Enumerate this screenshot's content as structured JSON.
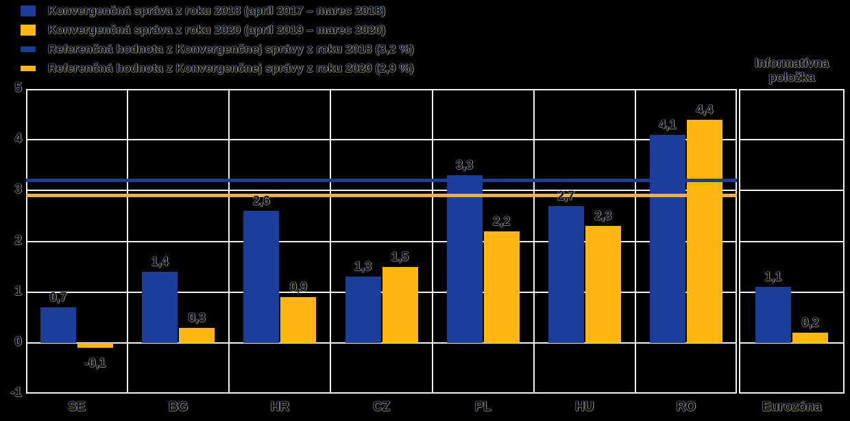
{
  "legend": {
    "items": [
      {
        "label": "Konvergenčná správa z roku 2018 (apríl 2017 – marec 2018)",
        "color": "#1b3c99",
        "type": "box"
      },
      {
        "label": "Konvergenčná správa z roku 2020 (apríl 2019 – marec 2020)",
        "color": "#ffb612",
        "type": "box"
      },
      {
        "label": "Referenčná hodnota z Konvergenčnej správy z roku 2018 (3,2 %)",
        "color": "#1b3c99",
        "type": "line"
      },
      {
        "label": "Referenčná hodnota z Konvergenčnej správy z roku 2020 (2,9 %)",
        "color": "#ffb612",
        "type": "line"
      }
    ]
  },
  "info_label": {
    "text": "Informatívna položka"
  },
  "colors": {
    "series_2018": "#1b3c99",
    "series_2020": "#ffb612",
    "grid": "#f2f2f2",
    "background": "#000000"
  },
  "chart_data": {
    "type": "bar",
    "categories": [
      "SE",
      "BG",
      "HR",
      "CZ",
      "PL",
      "HU",
      "RO"
    ],
    "series": [
      {
        "name": "Konvergenčná správa z roku 2018",
        "color": "#1b3c99",
        "values": [
          0.7,
          1.4,
          2.6,
          1.3,
          3.3,
          2.7,
          4.1
        ],
        "labels": [
          "0,7",
          "1,4",
          "2,6",
          "1,3",
          "3,3",
          "2,7",
          "4,1"
        ]
      },
      {
        "name": "Konvergenčná správa z roku 2020",
        "color": "#ffb612",
        "values": [
          -0.1,
          0.3,
          0.9,
          1.5,
          2.2,
          2.3,
          4.4
        ],
        "labels": [
          "-0,1",
          "0,3",
          "0,9",
          "1,5",
          "2,2",
          "2,3",
          "4,4"
        ]
      }
    ],
    "reference_lines": [
      {
        "name": "Referenčná hodnota z Konvergenčnej správy z roku 2018",
        "value": 3.2,
        "display": "3,2 %",
        "color": "#1b3c99"
      },
      {
        "name": "Referenčná hodnota z Konvergenčnej správy z roku 2020",
        "value": 2.9,
        "display": "2,9 %",
        "color": "#ffb612"
      }
    ],
    "info_panel": {
      "title": "Informatívna položka",
      "category": "Eurozóna",
      "values": [
        1.1,
        0.2
      ],
      "labels": [
        "1,1",
        "0,2"
      ]
    },
    "ylim": [
      -1,
      5
    ],
    "yticks": [
      -1,
      0,
      1,
      2,
      3,
      4,
      5
    ],
    "ytick_labels": [
      "-1",
      "0",
      "1",
      "2",
      "3",
      "4",
      "5"
    ],
    "grid": true,
    "legend_position": "top-left"
  }
}
